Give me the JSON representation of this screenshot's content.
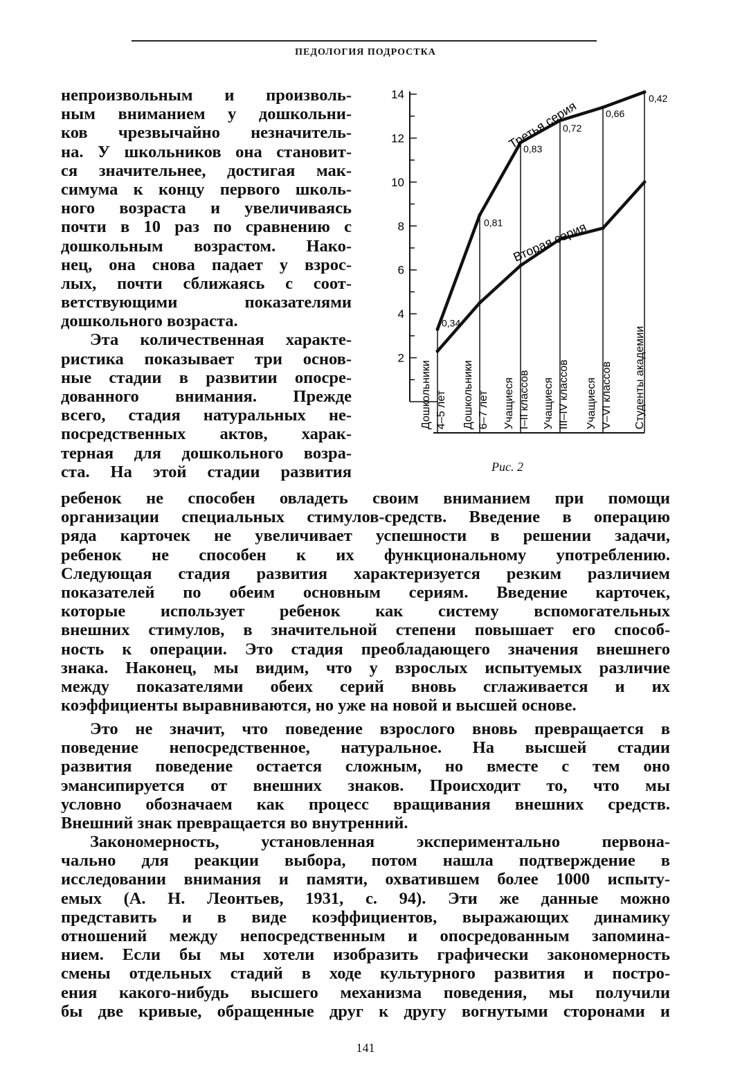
{
  "header": "ПЕДОЛОГИЯ ПОДРОСТКА",
  "left_column_lines": [
    "непроизвольным и произволь-",
    "ным вниманием у дошкольни-",
    "ков чрезвычайно незначитель-",
    "на. У школьников она становит-",
    "ся значительнее, достигая мак-",
    "симума к концу первого школь-",
    "ного возраста и увеличиваясь",
    "почти в 10 раз по сравнению с",
    "дошкольным возрастом. Нако-",
    "нец, она снова падает у взрос-",
    "лых, почти сближаясь с соот-",
    "ветствующими показателями",
    "дошкольного возраста.",
    "Эта количественная характе-",
    "ристика показывает три основ-",
    "ные стадии в развитии опосре-",
    "дованного внимания. Прежде",
    "всего, стадия натуральных не-",
    "посредственных актов, харак-",
    "терная для дошкольного возра-",
    "ста. На этой стадии развития"
  ],
  "full_width_lines_1": [
    "ребенок не способен овладеть своим вниманием при помощи",
    "организации специальных стимулов-средств. Введение в операцию",
    "ряда карточек не увеличивает успешности в решении задачи,",
    "ребенок не способен к их функциональному употреблению.",
    "Следующая стадия развития характеризуется резким различием",
    "показателей по обеим основным сериям. Введение карточек,",
    "которые использует ребенок как систему вспомогательных",
    "внешних стимулов, в значительной степени повышает его способ-",
    "ность к операции. Это стадия преобладающего значения внешнего",
    "знака. Наконец, мы видим, что у взрослых испытуемых различие",
    "между показателями обеих серий вновь сглаживается и их",
    "коэффициенты выравниваются, но уже на новой и высшей основе."
  ],
  "full_width_lines_2": [
    "Это не значит, что поведение взрослого вновь превращается в",
    "поведение непосредственное, натуральное. На высшей стадии",
    "развития поведение остается сложным, но вместе с тем оно",
    "эмансипируется от внешних знаков. Происходит то, что мы",
    "условно обозначаем как процесс вращивания внешних средств.",
    "Внешний знак превращается во внутренний."
  ],
  "full_width_lines_3": [
    "Закономерность, установленная экспериментально первона-",
    "чально для реакции выбора, потом нашла подтверждение в",
    "исследовании внимания и памяти, охватившем более 1000 испыту-",
    "емых (А. Н. Леонтьев, 1931, с. 94). Эти же данные можно",
    "представить и в виде коэффициентов, выражающих динамику",
    "отношений между непосредственным и опосредованным запомина-",
    "нием. Если бы мы хотели изобразить графически закономерность",
    "смены отдельных стадий в ходе культурного развития и постро-",
    "ения какого-нибудь высшего механизма поведения, мы получили",
    "бы две кривые, обращенные друг к другу вогнутыми сторонами и"
  ],
  "caption": "Рис. 2",
  "page_number": "141",
  "chart_data": {
    "type": "line",
    "ylim": [
      0,
      14
    ],
    "y_ticks": [
      "2",
      "4",
      "6",
      "8",
      "10",
      "12",
      "14"
    ],
    "categories": [
      [
        "Дошкольники",
        "4–5 лет"
      ],
      [
        "Дошкольники",
        "6–7 лет"
      ],
      [
        "Учащиеся",
        "I–II классов"
      ],
      [
        "Учащиеся",
        "III–IV классов"
      ],
      [
        "Учащиеся",
        "V–VI классов"
      ],
      [
        "Студенты академии"
      ]
    ],
    "series": [
      {
        "name": "Третья серия",
        "values": [
          3.3,
          8.5,
          11.8,
          12.8,
          13.4,
          14.1
        ]
      },
      {
        "name": "Вторая серия",
        "values": [
          2.3,
          4.5,
          6.2,
          7.4,
          7.9,
          10.0
        ]
      }
    ],
    "coefficients": [
      "0,34",
      "0,81",
      "0,83",
      "0,72",
      "0,66",
      "0,42"
    ]
  }
}
